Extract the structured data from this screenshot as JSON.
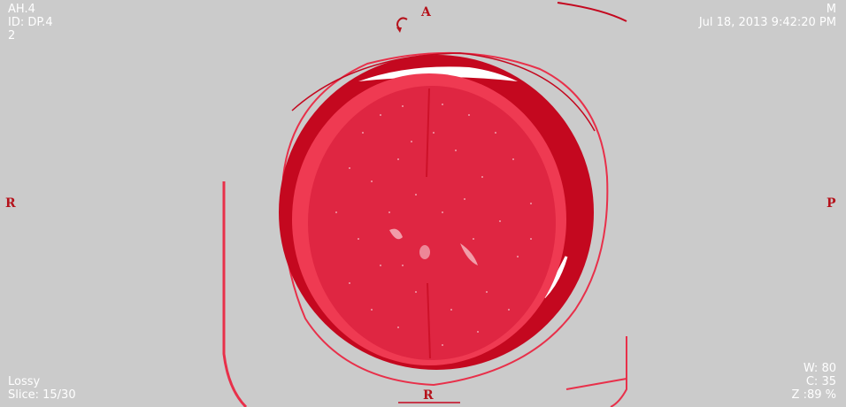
{
  "patient": {
    "name": "AH.4",
    "id": "ID: DP.4",
    "series": "2",
    "sex": "M",
    "datetime": "Jul 18, 2013 9:42:20 PM"
  },
  "image": {
    "compression": "Lossy",
    "slice": "Slice: 15/30",
    "window_width": "W: 80",
    "window_center": "C: 35",
    "zoom": "Z :89 %"
  },
  "orientation": {
    "top": "A",
    "left": "R",
    "right": "P",
    "bottom": "R"
  },
  "icons": {
    "rotate": "rotate-icon"
  },
  "colors": {
    "background": "#cbcbcb",
    "tissue": "#e8304a",
    "skull": "#c4081f",
    "overlay_text": "#ffffff",
    "orientation_marker": "#b5121b"
  }
}
